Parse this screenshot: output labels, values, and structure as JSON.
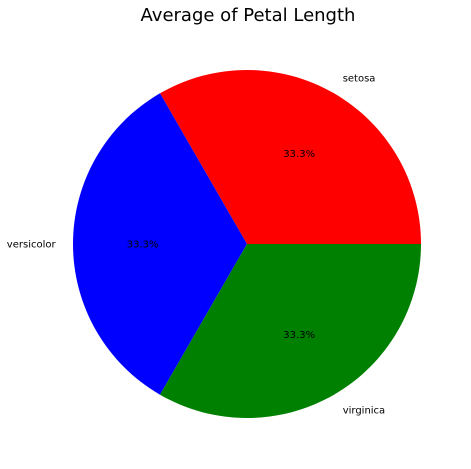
{
  "chart_data": {
    "type": "pie",
    "title": "Average of Petal Length",
    "categories": [
      "setosa",
      "versicolor",
      "virginica"
    ],
    "values": [
      33.3,
      33.3,
      33.3
    ],
    "value_labels": [
      "33.3%",
      "33.3%",
      "33.3%"
    ],
    "colors": [
      "#ff0000",
      "#0000ff",
      "#008000"
    ],
    "start_angle_deg": 0,
    "direction": "counterclockwise",
    "legend": "none"
  }
}
